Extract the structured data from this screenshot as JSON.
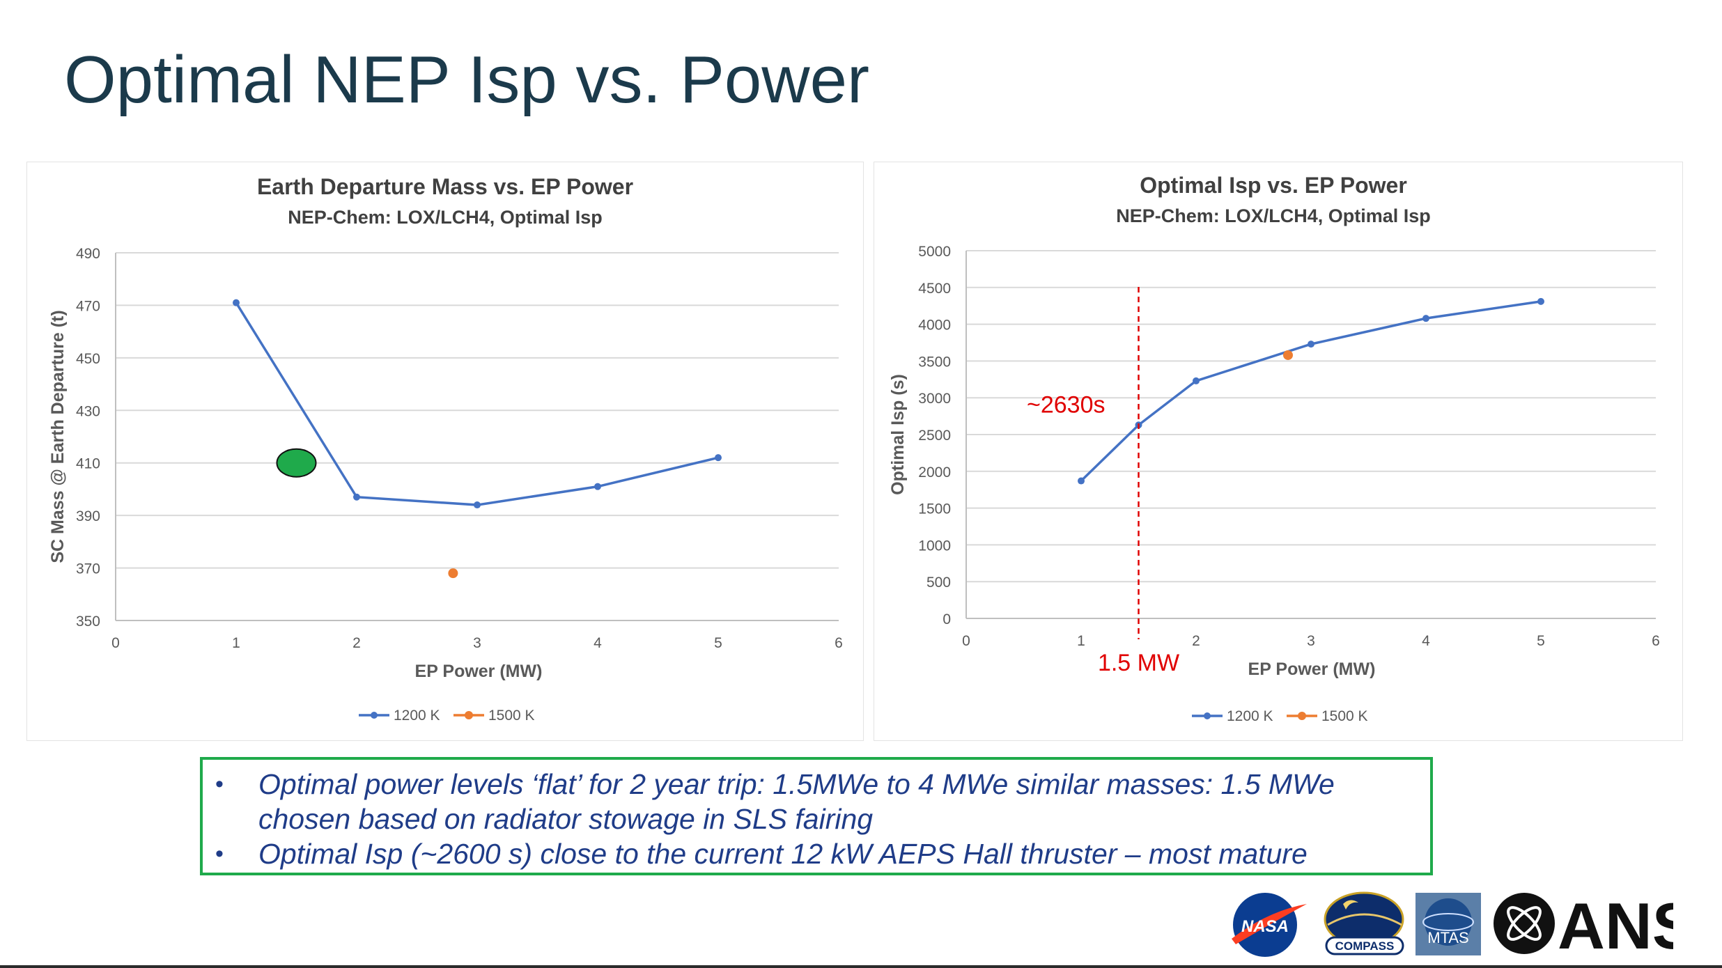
{
  "slide": {
    "title": "Optimal NEP Isp vs. Power",
    "bullets": [
      "Optimal power levels ‘flat’ for 2 year trip: 1.5MWe to 4 MWe similar masses: 1.5 MWe chosen based on radiator stowage in SLS fairing",
      "Optimal Isp (~2600 s) close to the current 12 kW AEPS Hall thruster – most mature"
    ]
  },
  "logos": {
    "nasa": "NASA",
    "compass": "COMPASS",
    "mtas": "MTAS",
    "ans": "ANS"
  },
  "colors": {
    "title": "#1b3a4b",
    "series_1200": "#4472c4",
    "series_1500": "#ed7d31",
    "annotation": "#e00000",
    "highlight": "#1faa4b",
    "bullet_text": "#1f3c88"
  },
  "chart_data": [
    {
      "type": "line",
      "title": "Earth Departure Mass vs. EP Power",
      "subtitle": "NEP-Chem: LOX/LCH4, Optimal Isp",
      "xlabel": "EP Power (MW)",
      "ylabel": "SC Mass @ Earth Departure (t)",
      "xlim": [
        0,
        6
      ],
      "ylim": [
        350,
        490
      ],
      "xticks": [
        0,
        1,
        2,
        3,
        4,
        5,
        6
      ],
      "yticks": [
        350,
        370,
        390,
        410,
        430,
        450,
        470,
        490
      ],
      "grid": true,
      "legend": "bottom",
      "series": [
        {
          "name": "1200 K",
          "x": [
            1,
            2,
            3,
            4,
            5
          ],
          "values": [
            471,
            397,
            394,
            401,
            412
          ]
        },
        {
          "name": "1500 K",
          "x": [
            2.8
          ],
          "values": [
            368
          ]
        }
      ],
      "highlight": {
        "x": 1.5,
        "y": 410,
        "shape": "green-ellipse"
      }
    },
    {
      "type": "line",
      "title": "Optimal Isp vs. EP Power",
      "subtitle": "NEP-Chem: LOX/LCH4, Optimal Isp",
      "xlabel": "EP Power (MW)",
      "ylabel": "Optimal Isp (s)",
      "xlim": [
        0,
        6
      ],
      "ylim": [
        0,
        5000
      ],
      "xticks": [
        0,
        1,
        2,
        3,
        4,
        5,
        6
      ],
      "yticks": [
        0,
        500,
        1000,
        1500,
        2000,
        2500,
        3000,
        3500,
        4000,
        4500,
        5000
      ],
      "grid": true,
      "legend": "bottom",
      "series": [
        {
          "name": "1200 K",
          "x": [
            1,
            1.5,
            2,
            3,
            4,
            5
          ],
          "values": [
            1870,
            2630,
            3230,
            3730,
            4080,
            4310
          ]
        },
        {
          "name": "1500 K",
          "x": [
            2.8
          ],
          "values": [
            3580
          ]
        }
      ],
      "annotations": [
        {
          "text": "~2630s",
          "x": 1.5,
          "y": 2630
        },
        {
          "text": "1.5 MW",
          "x": 1.5,
          "style": "dashed-vertical-line"
        }
      ]
    }
  ]
}
